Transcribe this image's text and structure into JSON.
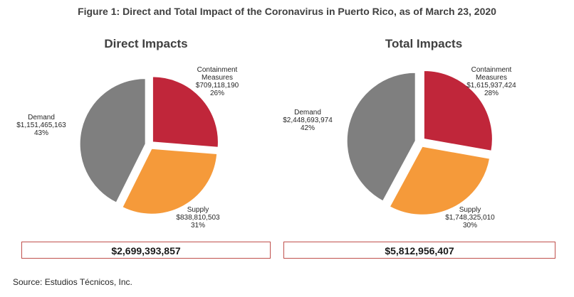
{
  "figure_title": "Figure 1: Direct and Total Impact of the Coronavirus in Puerto Rico, as of March 23, 2020",
  "source": "Source: Estudios Técnicos, Inc.",
  "colors": {
    "containment": "#c0263a",
    "supply": "#f59a3a",
    "demand": "#7f7f7f",
    "box_border": "#c0504d"
  },
  "chart_data": [
    {
      "type": "pie",
      "title": "Direct Impacts",
      "total": "$2,699,393,857",
      "slices": [
        {
          "label": [
            "Containment",
            "Measures"
          ],
          "value_text": "$709,118,190",
          "pct_text": "26%",
          "value": 709118190,
          "percent": 26
        },
        {
          "label": [
            "Supply"
          ],
          "value_text": "$838,810,503",
          "pct_text": "31%",
          "value": 838810503,
          "percent": 31
        },
        {
          "label": [
            "Demand"
          ],
          "value_text": "$1,151,465,163",
          "pct_text": "43%",
          "value": 1151465163,
          "percent": 43
        }
      ]
    },
    {
      "type": "pie",
      "title": "Total Impacts",
      "total": "$5,812,956,407",
      "slices": [
        {
          "label": [
            "Containment",
            "Measures"
          ],
          "value_text": "$1,615,937,424",
          "pct_text": "28%",
          "value": 1615937424,
          "percent": 28
        },
        {
          "label": [
            "Supply"
          ],
          "value_text": "$1,748,325,010",
          "pct_text": "30%",
          "value": 1748325010,
          "percent": 30
        },
        {
          "label": [
            "Demand"
          ],
          "value_text": "$2,448,693,974",
          "pct_text": "42%",
          "value": 2448693974,
          "percent": 42
        }
      ]
    }
  ]
}
